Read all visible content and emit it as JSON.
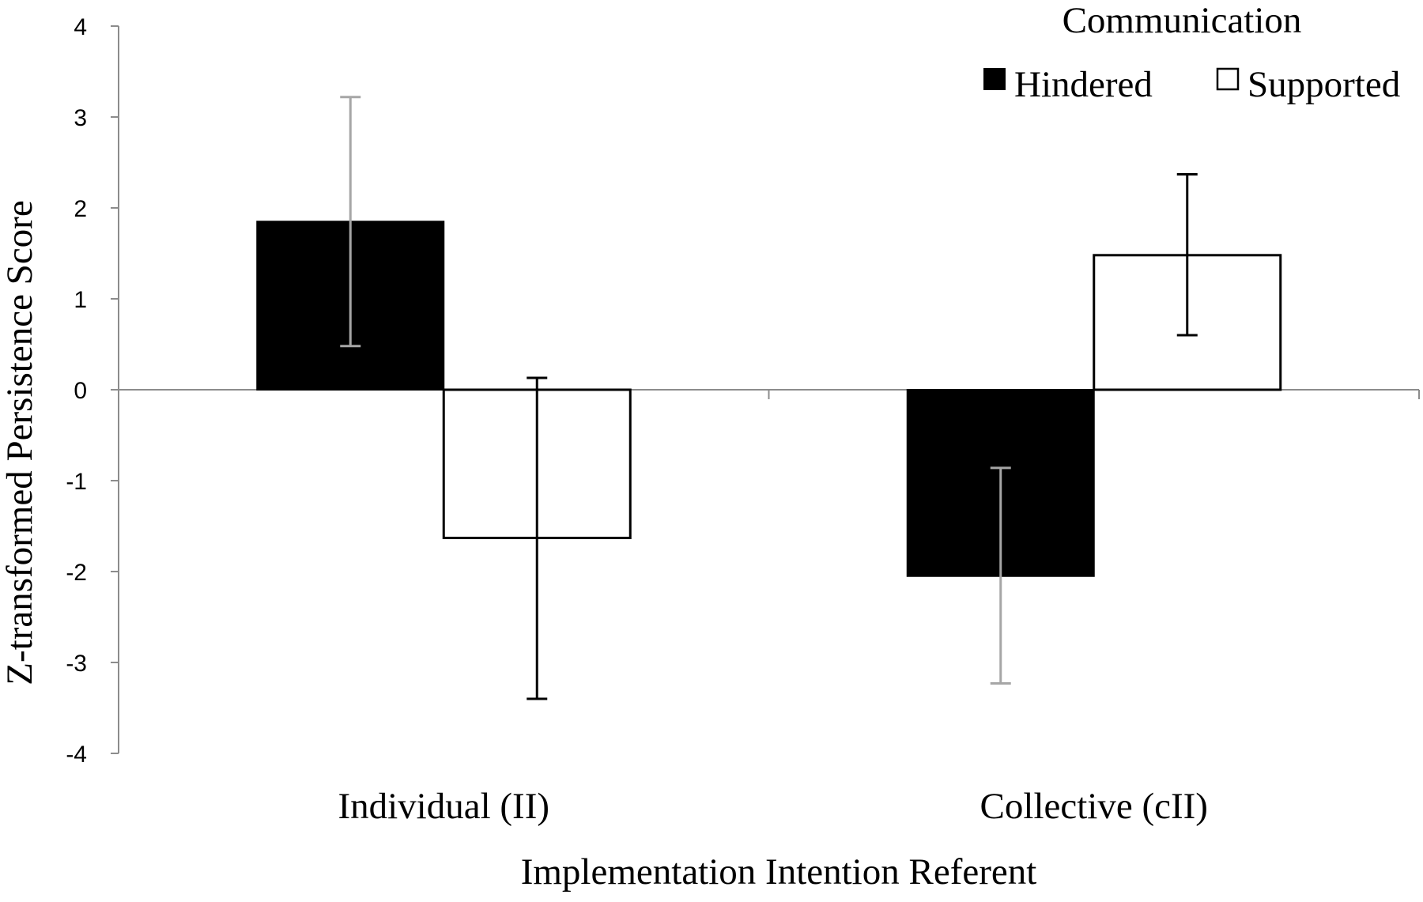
{
  "chart_data": {
    "type": "bar",
    "categories": [
      "Individual (II)",
      "Collective (cII)"
    ],
    "series": [
      {
        "name": "Hindered",
        "values": [
          1.85,
          -2.05
        ],
        "error_low": [
          0.48,
          -3.23
        ],
        "error_high": [
          3.22,
          -0.86
        ],
        "fill": "#000000",
        "error_color": "#a6a6a6"
      },
      {
        "name": "Supported",
        "values": [
          -1.63,
          1.48
        ],
        "error_low": [
          -3.4,
          0.6
        ],
        "error_high": [
          0.13,
          2.37
        ],
        "fill": "#ffffff",
        "error_color": "#000000"
      }
    ],
    "xlabel": "Implementation Intention Referent",
    "ylabel": "Z-transformed Persistence Score",
    "ylim": [
      -4,
      4
    ],
    "yticks": [
      4,
      3,
      2,
      1,
      0,
      -1,
      -2,
      -3,
      -4
    ],
    "legend": {
      "title": "Communication",
      "placement": "top-right"
    },
    "grid": false
  }
}
